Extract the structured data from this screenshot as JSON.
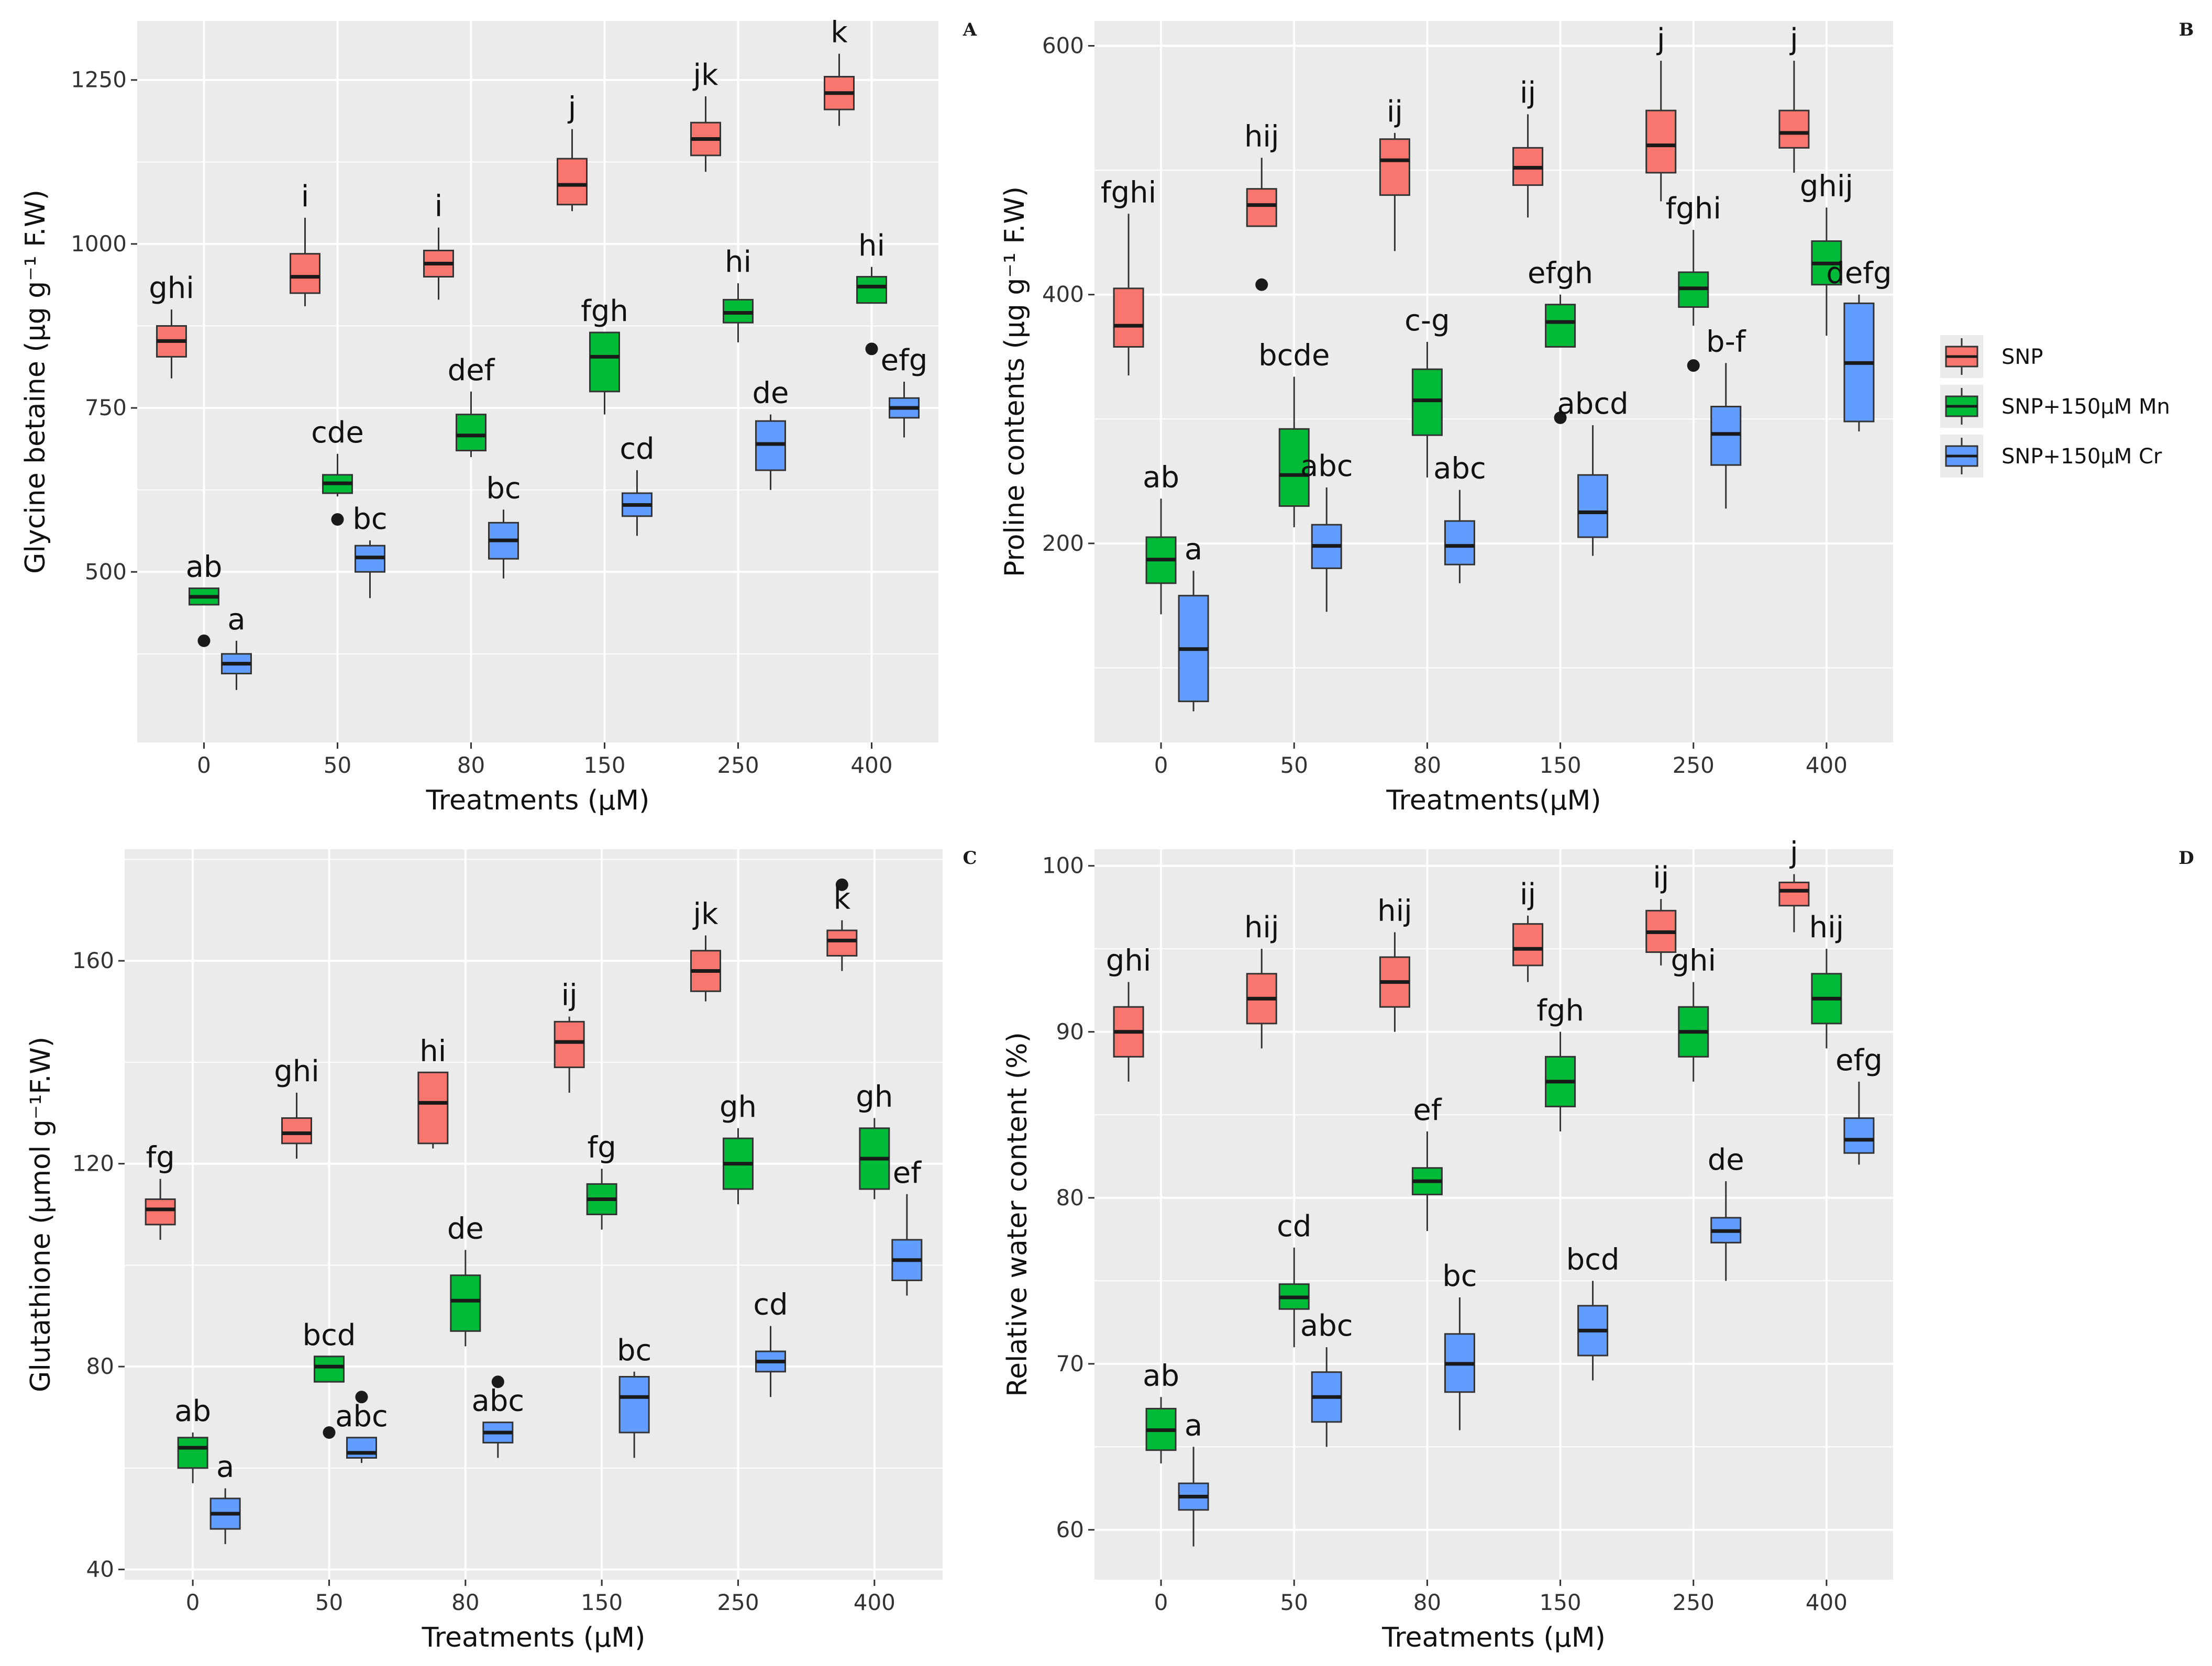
{
  "colors": {
    "panel_bg": "#ebebeb",
    "grid": "#ffffff",
    "SNP": "#f8766d",
    "SNP+150µM Mn": "#00ba38",
    "SNP+150µM Cr": "#619cff",
    "median": "#1a1a1a"
  },
  "legend": {
    "entries": [
      {
        "name": "SNP",
        "color": "#f8766d"
      },
      {
        "name": "SNP+150µM Mn",
        "color": "#00ba38"
      },
      {
        "name": "SNP+150µM Cr",
        "color": "#619cff"
      }
    ],
    "position": "right"
  },
  "chart_data": [
    {
      "id": "A",
      "type": "box",
      "panel_tag": "A",
      "xlabel": "Treatments (µM)",
      "ylabel": "Glycine betaine (µg g⁻¹ F.W)",
      "categories": [
        "0",
        "50",
        "80",
        "150",
        "250",
        "400"
      ],
      "ylim": [
        240,
        1340
      ],
      "yticks": [
        500,
        750,
        1000,
        1250
      ],
      "series": [
        {
          "name": "SNP",
          "boxes": [
            {
              "min": 795,
              "q1": 828,
              "median": 852,
              "q3": 875,
              "max": 900,
              "label": "ghi",
              "outliers": []
            },
            {
              "min": 905,
              "q1": 925,
              "median": 950,
              "q3": 985,
              "max": 1040,
              "label": "i",
              "outliers": []
            },
            {
              "min": 915,
              "q1": 950,
              "median": 970,
              "q3": 990,
              "max": 1025,
              "label": "i",
              "outliers": []
            },
            {
              "min": 1050,
              "q1": 1060,
              "median": 1090,
              "q3": 1130,
              "max": 1175,
              "label": "j",
              "outliers": []
            },
            {
              "min": 1110,
              "q1": 1135,
              "median": 1160,
              "q3": 1185,
              "max": 1225,
              "label": "jk",
              "outliers": []
            },
            {
              "min": 1180,
              "q1": 1205,
              "median": 1230,
              "q3": 1255,
              "max": 1290,
              "label": "k",
              "outliers": []
            }
          ]
        },
        {
          "name": "SNP+150µM Mn",
          "boxes": [
            {
              "min": 450,
              "q1": 450,
              "median": 462,
              "q3": 475,
              "max": 475,
              "label": "ab",
              "outliers": [
                395
              ]
            },
            {
              "min": 615,
              "q1": 620,
              "median": 635,
              "q3": 648,
              "max": 680,
              "label": "cde",
              "outliers": [
                580
              ]
            },
            {
              "min": 675,
              "q1": 685,
              "median": 708,
              "q3": 740,
              "max": 775,
              "label": "def",
              "outliers": []
            },
            {
              "min": 740,
              "q1": 775,
              "median": 828,
              "q3": 865,
              "max": 865,
              "label": "fgh",
              "outliers": []
            },
            {
              "min": 850,
              "q1": 880,
              "median": 895,
              "q3": 915,
              "max": 940,
              "label": "hi",
              "outliers": []
            },
            {
              "min": 910,
              "q1": 910,
              "median": 935,
              "q3": 950,
              "max": 965,
              "label": "hi",
              "outliers": [
                840
              ]
            }
          ]
        },
        {
          "name": "SNP+150µM Cr",
          "boxes": [
            {
              "min": 320,
              "q1": 345,
              "median": 360,
              "q3": 375,
              "max": 395,
              "label": "a",
              "outliers": []
            },
            {
              "min": 460,
              "q1": 500,
              "median": 522,
              "q3": 540,
              "max": 548,
              "label": "bc",
              "outliers": []
            },
            {
              "min": 490,
              "q1": 520,
              "median": 548,
              "q3": 575,
              "max": 595,
              "label": "bc",
              "outliers": []
            },
            {
              "min": 555,
              "q1": 585,
              "median": 602,
              "q3": 620,
              "max": 655,
              "label": "cd",
              "outliers": []
            },
            {
              "min": 625,
              "q1": 655,
              "median": 695,
              "q3": 730,
              "max": 740,
              "label": "de",
              "outliers": []
            },
            {
              "min": 705,
              "q1": 735,
              "median": 750,
              "q3": 765,
              "max": 790,
              "label": "efg",
              "outliers": []
            }
          ]
        }
      ]
    },
    {
      "id": "B",
      "type": "box",
      "panel_tag": "B",
      "xlabel": "Treatments(µM)",
      "ylabel": "Proline contents (µg g⁻¹ F.W)",
      "categories": [
        "0",
        "50",
        "80",
        "150",
        "250",
        "400"
      ],
      "ylim": [
        40,
        620
      ],
      "yticks": [
        200,
        400,
        600
      ],
      "series": [
        {
          "name": "SNP",
          "boxes": [
            {
              "min": 335,
              "q1": 358,
              "median": 375,
              "q3": 405,
              "max": 465,
              "label": "fghi",
              "outliers": []
            },
            {
              "min": 455,
              "q1": 455,
              "median": 472,
              "q3": 485,
              "max": 510,
              "label": "hij",
              "outliers": [
                408
              ]
            },
            {
              "min": 435,
              "q1": 480,
              "median": 508,
              "q3": 525,
              "max": 530,
              "label": "ij",
              "outliers": []
            },
            {
              "min": 462,
              "q1": 488,
              "median": 502,
              "q3": 518,
              "max": 545,
              "label": "ij",
              "outliers": []
            },
            {
              "min": 475,
              "q1": 498,
              "median": 520,
              "q3": 548,
              "max": 588,
              "label": "j",
              "outliers": []
            },
            {
              "min": 498,
              "q1": 518,
              "median": 530,
              "q3": 548,
              "max": 588,
              "label": "j",
              "outliers": []
            }
          ]
        },
        {
          "name": "SNP+150µM Mn",
          "boxes": [
            {
              "min": 143,
              "q1": 168,
              "median": 187,
              "q3": 205,
              "max": 236,
              "label": "ab",
              "outliers": []
            },
            {
              "min": 213,
              "q1": 230,
              "median": 255,
              "q3": 292,
              "max": 334,
              "label": "bcde",
              "outliers": []
            },
            {
              "min": 253,
              "q1": 287,
              "median": 315,
              "q3": 340,
              "max": 362,
              "label": "c-g",
              "outliers": []
            },
            {
              "min": 358,
              "q1": 358,
              "median": 378,
              "q3": 392,
              "max": 400,
              "label": "efgh",
              "outliers": [
                301
              ]
            },
            {
              "min": 375,
              "q1": 390,
              "median": 405,
              "q3": 418,
              "max": 452,
              "label": "fghi",
              "outliers": [
                343
              ]
            },
            {
              "min": 367,
              "q1": 408,
              "median": 425,
              "q3": 443,
              "max": 470,
              "label": "ghij",
              "outliers": []
            }
          ]
        },
        {
          "name": "SNP+150µM Cr",
          "boxes": [
            {
              "min": 65,
              "q1": 73,
              "median": 115,
              "q3": 158,
              "max": 178,
              "label": "a",
              "outliers": []
            },
            {
              "min": 145,
              "q1": 180,
              "median": 198,
              "q3": 215,
              "max": 245,
              "label": "abc",
              "outliers": []
            },
            {
              "min": 168,
              "q1": 183,
              "median": 198,
              "q3": 218,
              "max": 243,
              "label": "abc",
              "outliers": []
            },
            {
              "min": 190,
              "q1": 205,
              "median": 225,
              "q3": 255,
              "max": 295,
              "label": "abcd",
              "outliers": []
            },
            {
              "min": 228,
              "q1": 263,
              "median": 288,
              "q3": 310,
              "max": 345,
              "label": "b-f",
              "outliers": []
            },
            {
              "min": 290,
              "q1": 298,
              "median": 345,
              "q3": 393,
              "max": 400,
              "label": "defg",
              "outliers": []
            }
          ]
        }
      ]
    },
    {
      "id": "C",
      "type": "box",
      "panel_tag": "C",
      "xlabel": "Treatments (µM)",
      "ylabel": "Glutathione (µmol g⁻¹F.W)",
      "categories": [
        "0",
        "50",
        "80",
        "150",
        "250",
        "400"
      ],
      "ylim": [
        38,
        182
      ],
      "yticks": [
        40,
        80,
        120,
        160
      ],
      "series": [
        {
          "name": "SNP",
          "boxes": [
            {
              "min": 105,
              "q1": 108,
              "median": 111,
              "q3": 113,
              "max": 117,
              "label": "fg",
              "outliers": []
            },
            {
              "min": 121,
              "q1": 124,
              "median": 126,
              "q3": 129,
              "max": 134,
              "label": "ghi",
              "outliers": []
            },
            {
              "min": 123,
              "q1": 124,
              "median": 132,
              "q3": 138,
              "max": 138,
              "label": "hi",
              "outliers": []
            },
            {
              "min": 134,
              "q1": 139,
              "median": 144,
              "q3": 148,
              "max": 149,
              "label": "ij",
              "outliers": []
            },
            {
              "min": 152,
              "q1": 154,
              "median": 158,
              "q3": 162,
              "max": 165,
              "label": "jk",
              "outliers": []
            },
            {
              "min": 158,
              "q1": 161,
              "median": 164,
              "q3": 166,
              "max": 168,
              "label": "k",
              "outliers": [
                175
              ]
            }
          ]
        },
        {
          "name": "SNP+150µM Mn",
          "boxes": [
            {
              "min": 57,
              "q1": 60,
              "median": 64,
              "q3": 66,
              "max": 67,
              "label": "ab",
              "outliers": []
            },
            {
              "min": 77,
              "q1": 77,
              "median": 80,
              "q3": 82,
              "max": 82,
              "label": "bcd",
              "outliers": [
                67
              ]
            },
            {
              "min": 84,
              "q1": 87,
              "median": 93,
              "q3": 98,
              "max": 103,
              "label": "de",
              "outliers": []
            },
            {
              "min": 107,
              "q1": 110,
              "median": 113,
              "q3": 116,
              "max": 119,
              "label": "fg",
              "outliers": []
            },
            {
              "min": 112,
              "q1": 115,
              "median": 120,
              "q3": 125,
              "max": 127,
              "label": "gh",
              "outliers": []
            },
            {
              "min": 113,
              "q1": 115,
              "median": 121,
              "q3": 127,
              "max": 129,
              "label": "gh",
              "outliers": []
            }
          ]
        },
        {
          "name": "SNP+150µM Cr",
          "boxes": [
            {
              "min": 45,
              "q1": 48,
              "median": 51,
              "q3": 54,
              "max": 56,
              "label": "a",
              "outliers": []
            },
            {
              "min": 61,
              "q1": 62,
              "median": 63,
              "q3": 66,
              "max": 66,
              "label": "abc",
              "outliers": [
                74
              ]
            },
            {
              "min": 62,
              "q1": 65,
              "median": 67,
              "q3": 69,
              "max": 69,
              "label": "abc",
              "outliers": [
                77
              ]
            },
            {
              "min": 62,
              "q1": 67,
              "median": 74,
              "q3": 78,
              "max": 79,
              "label": "bc",
              "outliers": []
            },
            {
              "min": 74,
              "q1": 79,
              "median": 81,
              "q3": 83,
              "max": 88,
              "label": "cd",
              "outliers": []
            },
            {
              "min": 94,
              "q1": 97,
              "median": 101,
              "q3": 105,
              "max": 114,
              "label": "ef",
              "outliers": []
            }
          ]
        }
      ]
    },
    {
      "id": "D",
      "type": "box",
      "panel_tag": "D",
      "xlabel": "Treatments (µM)",
      "ylabel": "Relative water content (%)",
      "categories": [
        "0",
        "50",
        "80",
        "150",
        "250",
        "400"
      ],
      "ylim": [
        57,
        101
      ],
      "yticks": [
        60,
        70,
        80,
        90,
        100
      ],
      "series": [
        {
          "name": "SNP",
          "boxes": [
            {
              "min": 87,
              "q1": 88.5,
              "median": 90,
              "q3": 91.5,
              "max": 93,
              "label": "ghi",
              "outliers": []
            },
            {
              "min": 89,
              "q1": 90.5,
              "median": 92,
              "q3": 93.5,
              "max": 95,
              "label": "hij",
              "outliers": []
            },
            {
              "min": 90,
              "q1": 91.5,
              "median": 93,
              "q3": 94.5,
              "max": 96,
              "label": "hij",
              "outliers": []
            },
            {
              "min": 93,
              "q1": 94,
              "median": 95,
              "q3": 96.5,
              "max": 97,
              "label": "ij",
              "outliers": []
            },
            {
              "min": 94,
              "q1": 94.8,
              "median": 96,
              "q3": 97.3,
              "max": 98,
              "label": "ij",
              "outliers": []
            },
            {
              "min": 96,
              "q1": 97.6,
              "median": 98.5,
              "q3": 99,
              "max": 99.5,
              "label": "j",
              "outliers": []
            }
          ]
        },
        {
          "name": "SNP+150µM Mn",
          "boxes": [
            {
              "min": 64,
              "q1": 64.8,
              "median": 66,
              "q3": 67.3,
              "max": 68,
              "label": "ab",
              "outliers": []
            },
            {
              "min": 71,
              "q1": 73.3,
              "median": 74,
              "q3": 74.8,
              "max": 77,
              "label": "cd",
              "outliers": []
            },
            {
              "min": 78,
              "q1": 80.2,
              "median": 81,
              "q3": 81.8,
              "max": 84,
              "label": "ef",
              "outliers": []
            },
            {
              "min": 84,
              "q1": 85.5,
              "median": 87,
              "q3": 88.5,
              "max": 90,
              "label": "fgh",
              "outliers": []
            },
            {
              "min": 87,
              "q1": 88.5,
              "median": 90,
              "q3": 91.5,
              "max": 93,
              "label": "ghi",
              "outliers": []
            },
            {
              "min": 89,
              "q1": 90.5,
              "median": 92,
              "q3": 93.5,
              "max": 95,
              "label": "hij",
              "outliers": []
            }
          ]
        },
        {
          "name": "SNP+150µM Cr",
          "boxes": [
            {
              "min": 59,
              "q1": 61.2,
              "median": 62,
              "q3": 62.8,
              "max": 65,
              "label": "a",
              "outliers": []
            },
            {
              "min": 65,
              "q1": 66.5,
              "median": 68,
              "q3": 69.5,
              "max": 71,
              "label": "abc",
              "outliers": []
            },
            {
              "min": 66,
              "q1": 68.3,
              "median": 70,
              "q3": 71.8,
              "max": 74,
              "label": "bc",
              "outliers": []
            },
            {
              "min": 69,
              "q1": 70.5,
              "median": 72,
              "q3": 73.5,
              "max": 75,
              "label": "bcd",
              "outliers": []
            },
            {
              "min": 75,
              "q1": 77.3,
              "median": 78,
              "q3": 78.8,
              "max": 81,
              "label": "de",
              "outliers": []
            },
            {
              "min": 82,
              "q1": 82.7,
              "median": 83.5,
              "q3": 84.8,
              "max": 87,
              "label": "efg",
              "outliers": []
            }
          ]
        }
      ]
    }
  ]
}
